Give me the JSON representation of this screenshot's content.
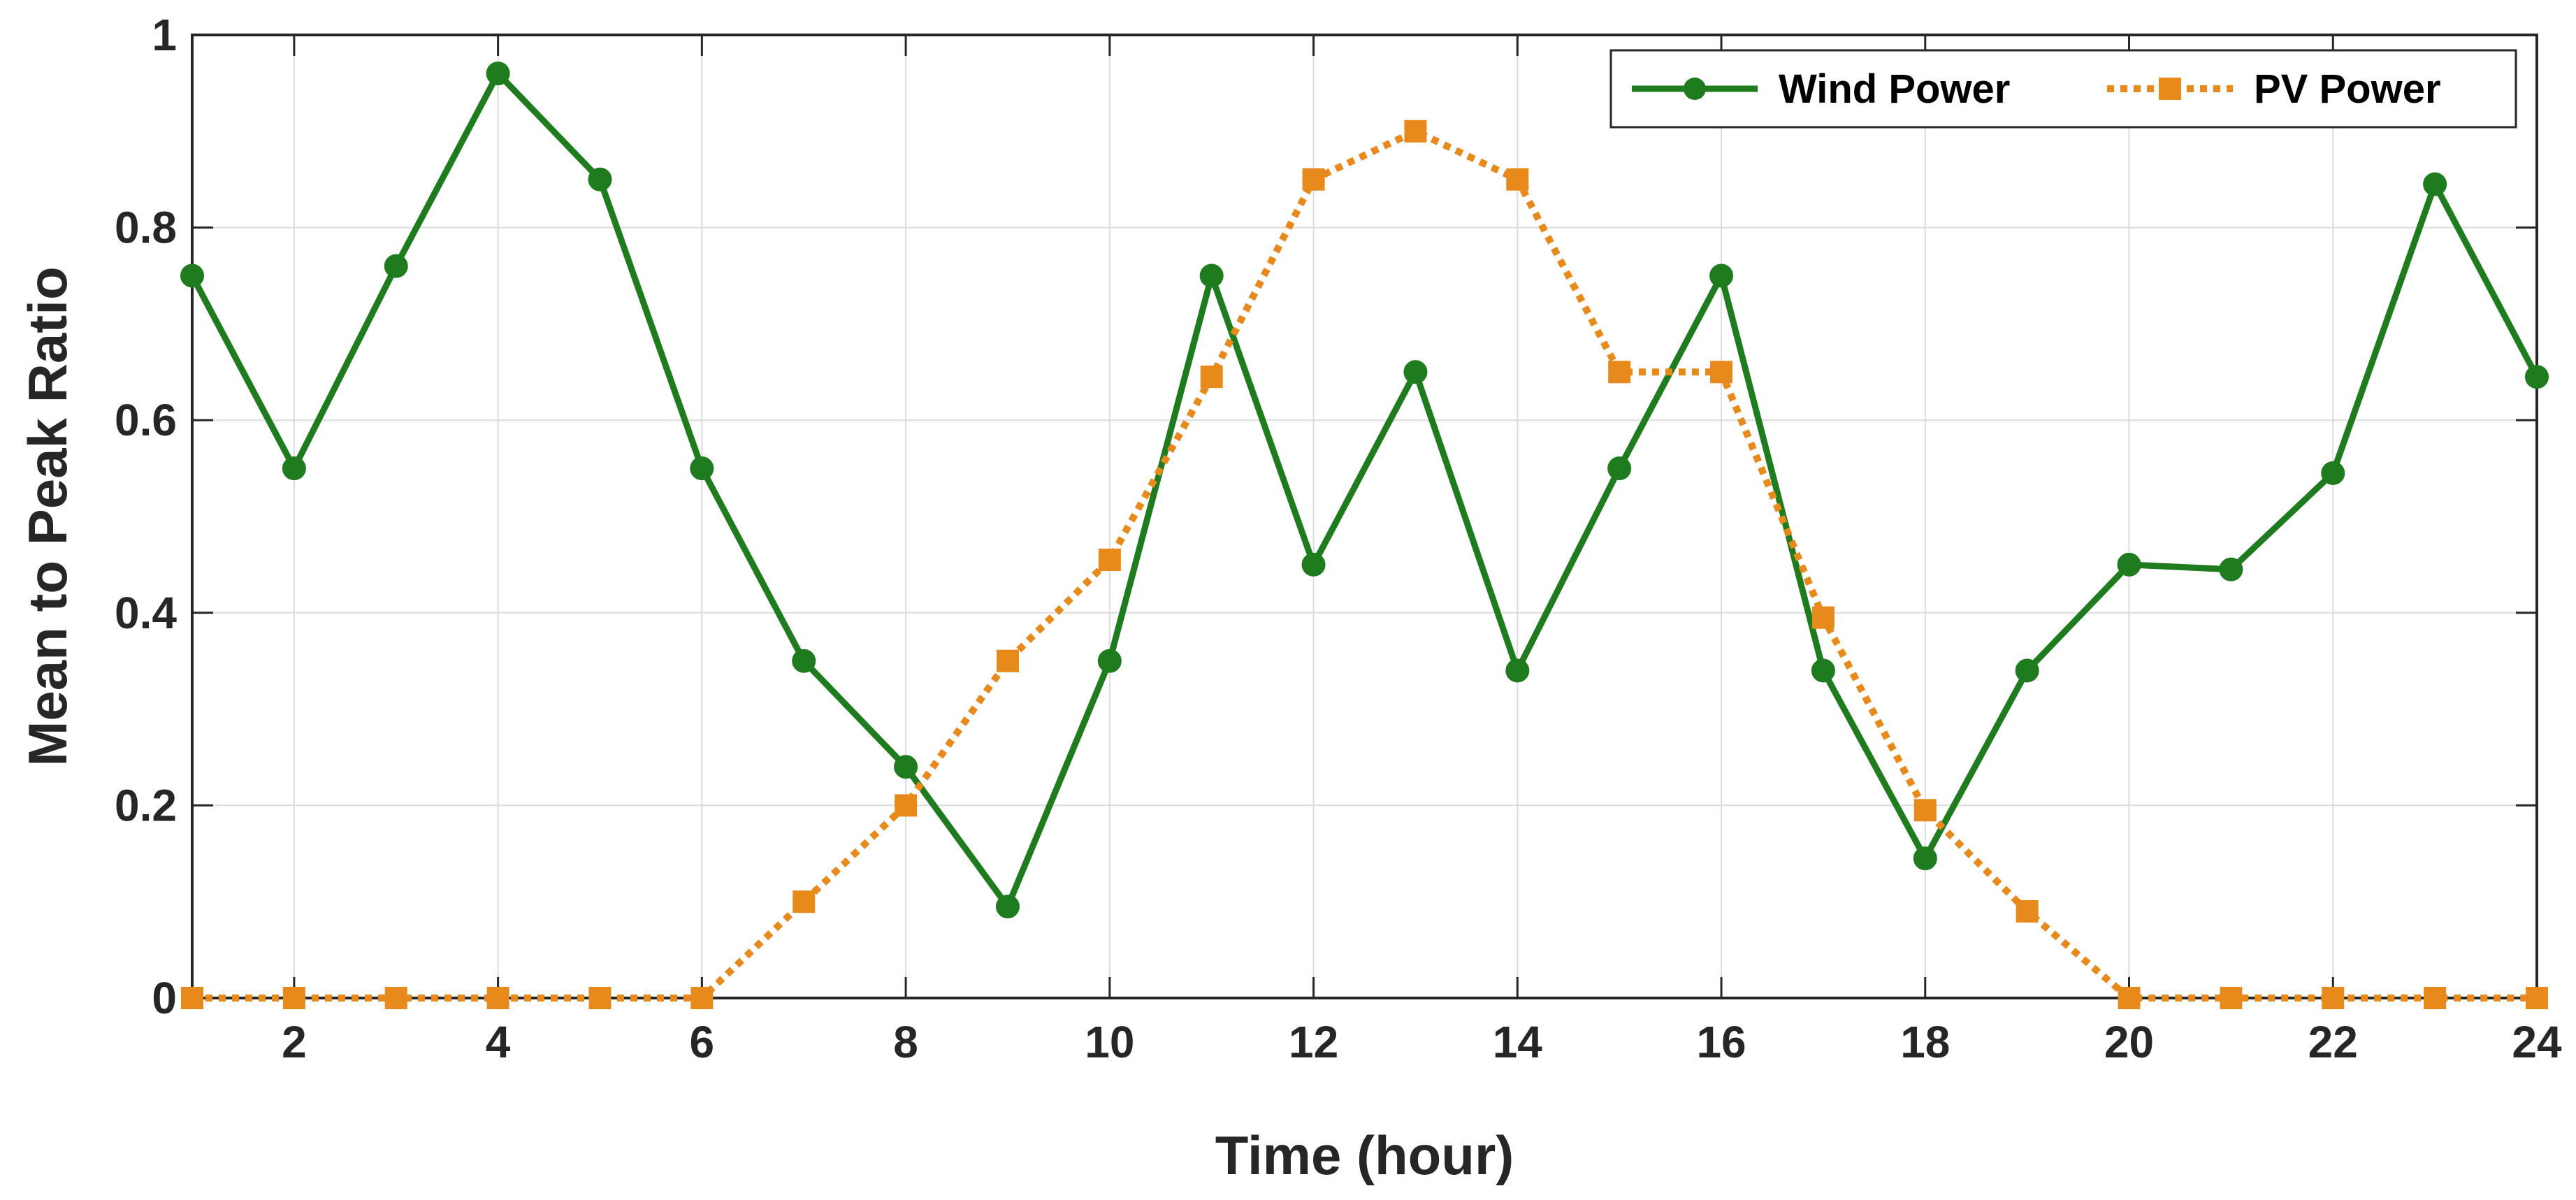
{
  "chart_data": {
    "type": "line",
    "title": "",
    "xlabel": "Time (hour)",
    "ylabel": "Mean to Peak Ratio",
    "xlim": [
      1,
      24
    ],
    "ylim": [
      0,
      1
    ],
    "xticks": [
      2,
      4,
      6,
      8,
      10,
      12,
      14,
      16,
      18,
      20,
      22,
      24
    ],
    "yticks": [
      0,
      0.2,
      0.4,
      0.6,
      0.8,
      1
    ],
    "ytick_labels": [
      "0",
      "0.2",
      "0.4",
      "0.6",
      "0.8",
      "1"
    ],
    "grid": true,
    "legend_position": "top-right",
    "x": [
      1,
      2,
      3,
      4,
      5,
      6,
      7,
      8,
      9,
      10,
      11,
      12,
      13,
      14,
      15,
      16,
      17,
      18,
      19,
      20,
      21,
      22,
      23,
      24
    ],
    "series": [
      {
        "name": "Wind Power",
        "color": "#1e7b1e",
        "line_style": "solid",
        "marker": "circle",
        "values": [
          0.75,
          0.55,
          0.76,
          0.96,
          0.85,
          0.55,
          0.35,
          0.24,
          0.095,
          0.35,
          0.75,
          0.45,
          0.65,
          0.34,
          0.55,
          0.75,
          0.34,
          0.145,
          0.34,
          0.45,
          0.445,
          0.545,
          0.845,
          0.645
        ]
      },
      {
        "name": "PV Power",
        "color": "#e8891c",
        "line_style": "dotted",
        "marker": "square",
        "values": [
          0,
          0,
          0,
          0,
          0,
          0,
          0.1,
          0.2,
          0.35,
          0.455,
          0.645,
          0.85,
          0.9,
          0.85,
          0.65,
          0.65,
          0.395,
          0.195,
          0.09,
          0,
          0,
          0,
          0,
          0
        ]
      }
    ]
  }
}
